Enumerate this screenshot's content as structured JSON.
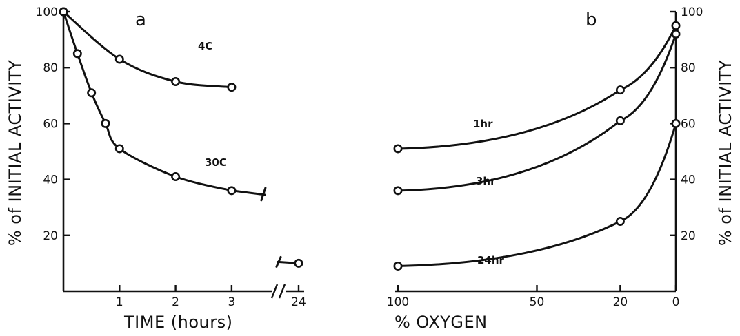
{
  "chart_data": [
    {
      "type": "line",
      "panel_label": "a",
      "xlabel": "TIME (hours)",
      "ylabel": "% of INITIAL ACTIVITY",
      "x_ticks": [
        "1",
        "2",
        "3",
        "24"
      ],
      "y_ticks": [
        "100",
        "80",
        "60",
        "40",
        "20"
      ],
      "axis_break": true,
      "ylim": [
        0,
        100
      ],
      "series": [
        {
          "name": "4C",
          "x": [
            0,
            1,
            2,
            3
          ],
          "y": [
            100,
            83,
            75,
            73
          ]
        },
        {
          "name": "30C",
          "x": [
            0,
            0.25,
            0.5,
            0.75,
            1,
            2,
            3,
            24
          ],
          "y": [
            100,
            85,
            71,
            60,
            51,
            41,
            36,
            10
          ]
        }
      ]
    },
    {
      "type": "line",
      "panel_label": "b",
      "xlabel": "% OXYGEN",
      "ylabel": "% of INITIAL ACTIVITY",
      "x_ticks": [
        "100",
        "50",
        "20",
        "0"
      ],
      "y_ticks": [
        "100",
        "80",
        "60",
        "40",
        "20"
      ],
      "ylim": [
        0,
        100
      ],
      "series": [
        {
          "name": "1hr",
          "x": [
            100,
            20,
            0
          ],
          "y": [
            51,
            72,
            95
          ]
        },
        {
          "name": "3hr",
          "x": [
            100,
            20,
            0
          ],
          "y": [
            36,
            61,
            92
          ]
        },
        {
          "name": "24hr",
          "x": [
            100,
            20,
            0
          ],
          "y": [
            9,
            25,
            60
          ]
        }
      ]
    }
  ]
}
